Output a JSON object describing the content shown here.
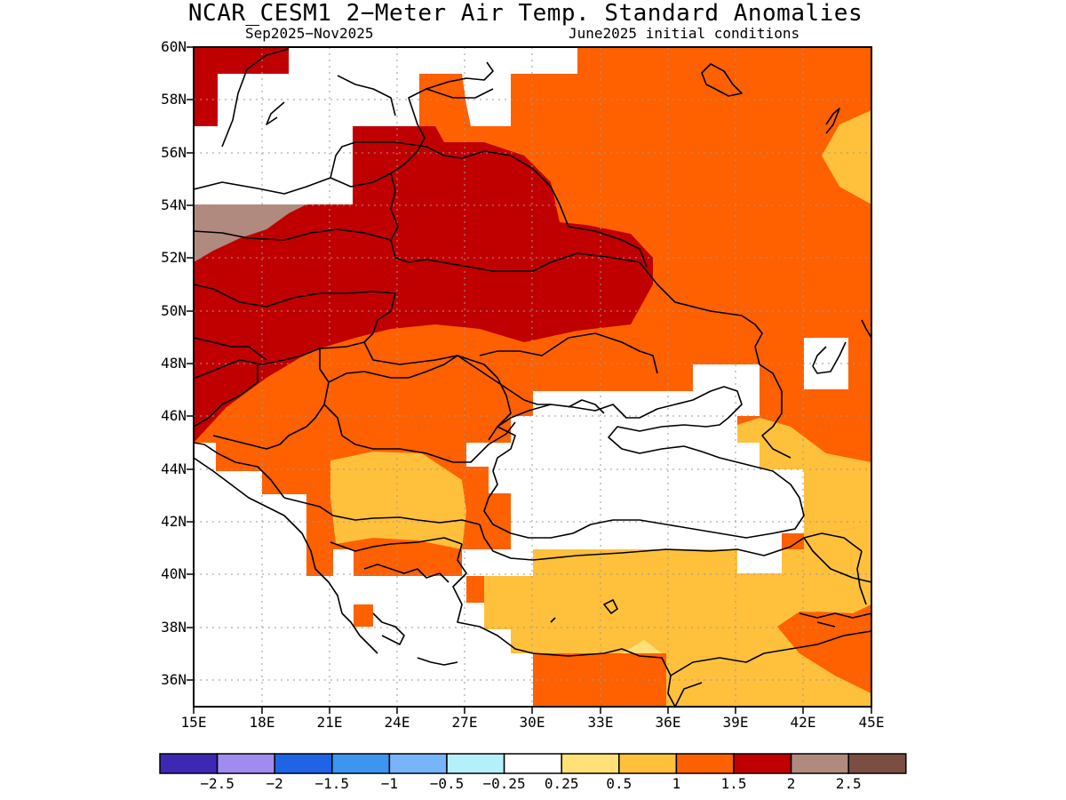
{
  "title": "NCAR_CESM1 2−Meter Air Temp. Standard Anomalies",
  "season": "Sep2025−Nov2025",
  "init": "June2025 initial conditions",
  "map": {
    "lon_range": [
      15,
      45
    ],
    "lat_range": [
      35,
      60
    ],
    "lat_labels": [
      "60N",
      "58N",
      "56N",
      "54N",
      "52N",
      "50N",
      "48N",
      "46N",
      "44N",
      "42N",
      "40N",
      "38N",
      "36N"
    ],
    "lon_labels": [
      "15E",
      "18E",
      "21E",
      "24E",
      "27E",
      "30E",
      "33E",
      "36E",
      "39E",
      "42E",
      "45E"
    ],
    "regions": [
      {
        "name": "eastern-europe-russia-1-to-1.5",
        "category": "1 to 1.5",
        "color": "#ff6000"
      },
      {
        "name": "central-europe-ukraine-1.5-to-2",
        "category": "1.5 to 2",
        "color": "#c00000"
      },
      {
        "name": "poland-2-to-2.5",
        "category": "2 to 2.5",
        "color": "#b08a7e"
      },
      {
        "name": "balkans-turkey-0.5-to-1",
        "category": "0.5 to 1",
        "color": "#ffc03c"
      },
      {
        "name": "black-sea-neutral",
        "category": "-0.25 to 0.25",
        "color": "#ffffff"
      }
    ]
  },
  "colorbar": {
    "colors": [
      "#3c28b4",
      "#a08cf0",
      "#2064e6",
      "#3c96f0",
      "#78b4fa",
      "#b4f0fa",
      "#ffffff",
      "#ffe178",
      "#ffc03c",
      "#ff6000",
      "#c00000",
      "#b08a7e",
      "#7a4e42"
    ],
    "labels": [
      "−2.5",
      "−2",
      "−1.5",
      "−1",
      "−0.5",
      "−0.25",
      "0.25",
      "0.5",
      "1",
      "1.5",
      "2",
      "2.5"
    ]
  }
}
